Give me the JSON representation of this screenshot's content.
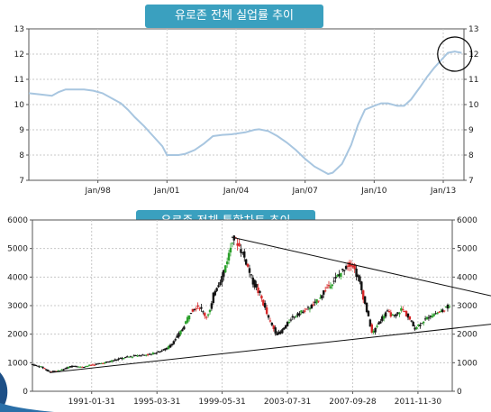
{
  "colors": {
    "title_bg": "#3aa0bf",
    "unemployment_line": "#a8c6e0",
    "candle_up": "#2ca02c",
    "candle_down": "#d62728",
    "candle_neutral": "#111111",
    "trendline": "#111111",
    "highlight_circle": "#000000"
  },
  "icons": [
    "highlight-circle",
    "corner-swoosh"
  ],
  "chart_data": [
    {
      "type": "line",
      "title": "유로존 전체 실업률 추이",
      "xlabel": "",
      "ylabel": "",
      "xlim": [
        1995.0,
        2013.9
      ],
      "ylim": [
        7,
        13
      ],
      "yticks": [
        7,
        8,
        9,
        10,
        11,
        12,
        13
      ],
      "xticks": [
        {
          "x": 1998.0,
          "label": "Jan/98"
        },
        {
          "x": 2001.0,
          "label": "Jan/01"
        },
        {
          "x": 2004.0,
          "label": "Jan/04"
        },
        {
          "x": 2007.0,
          "label": "Jan/07"
        },
        {
          "x": 2010.0,
          "label": "Jan/10"
        },
        {
          "x": 2013.0,
          "label": "Jan/13"
        }
      ],
      "grid": true,
      "axis_labels_both_sides": true,
      "series": [
        {
          "x": [
            1995.0,
            1995.5,
            1996.0,
            1996.3,
            1996.6,
            1997.0,
            1997.4,
            1997.8,
            1998.2,
            1998.6,
            1999.0,
            1999.3,
            1999.6,
            2000.0,
            2000.4,
            2000.8,
            2001.0,
            2001.5,
            2001.8,
            2002.2,
            2002.6,
            2003.0,
            2003.4,
            2003.8,
            2004.0,
            2004.4,
            2004.8,
            2005.0,
            2005.4,
            2005.8,
            2006.2,
            2006.6,
            2007.0,
            2007.4,
            2007.8,
            2008.0,
            2008.2,
            2008.6,
            2009.0,
            2009.3,
            2009.6,
            2010.0,
            2010.3,
            2010.6,
            2011.0,
            2011.3,
            2011.6,
            2012.0,
            2012.3,
            2012.6,
            2012.9,
            2013.2,
            2013.5,
            2013.8
          ],
          "y": [
            10.45,
            10.4,
            10.35,
            10.5,
            10.6,
            10.6,
            10.6,
            10.55,
            10.45,
            10.25,
            10.05,
            9.8,
            9.5,
            9.15,
            8.75,
            8.35,
            8.0,
            8.0,
            8.05,
            8.2,
            8.45,
            8.75,
            8.8,
            8.82,
            8.85,
            8.9,
            9.0,
            9.02,
            8.95,
            8.75,
            8.5,
            8.2,
            7.85,
            7.55,
            7.35,
            7.25,
            7.3,
            7.65,
            8.4,
            9.2,
            9.8,
            9.95,
            10.05,
            10.05,
            9.95,
            9.95,
            10.2,
            10.7,
            11.1,
            11.45,
            11.75,
            12.05,
            12.1,
            12.05
          ]
        }
      ],
      "annotations": [
        {
          "type": "circle",
          "x": 2013.5,
          "y": 12.0,
          "note": ""
        }
      ]
    },
    {
      "type": "candlestick",
      "title": "유로존 전체 통합차트 추이",
      "xlabel": "",
      "ylabel": "",
      "xlim": [
        1987.3,
        2014.1
      ],
      "ylim": [
        0,
        6000
      ],
      "yticks": [
        0,
        1000,
        2000,
        3000,
        4000,
        5000,
        6000
      ],
      "xticks": [
        {
          "x": 1991.08,
          "label": "1991-01-31"
        },
        {
          "x": 1995.25,
          "label": "1995-03-31"
        },
        {
          "x": 1999.41,
          "label": "1999-05-31"
        },
        {
          "x": 2003.58,
          "label": "2003-07-31"
        },
        {
          "x": 2007.74,
          "label": "2007-09-28"
        },
        {
          "x": 2011.91,
          "label": "2011-11-30"
        }
      ],
      "grid": true,
      "axis_labels_both_sides": true,
      "series": [
        {
          "name": "",
          "x": [
            1987.3,
            1988.0,
            1988.4,
            1989.0,
            1990.0,
            1990.5,
            1991.0,
            1992.0,
            1993.0,
            1994.0,
            1995.0,
            1996.0,
            1996.5,
            1997.0,
            1997.5,
            1998.0,
            1998.5,
            1998.8,
            1999.0,
            1999.5,
            2000.0,
            2000.2,
            2000.5,
            2001.0,
            2001.5,
            2002.0,
            2002.5,
            2003.0,
            2003.3,
            2004.0,
            2005.0,
            2005.5,
            2006.0,
            2006.5,
            2007.0,
            2007.5,
            2007.8,
            2008.3,
            2008.8,
            2009.1,
            2009.5,
            2010.0,
            2010.5,
            2011.0,
            2011.5,
            2011.8,
            2012.2,
            2012.7,
            2013.0,
            2013.5,
            2014.0
          ],
          "y": [
            950,
            850,
            700,
            700,
            900,
            850,
            900,
            1000,
            1150,
            1250,
            1300,
            1500,
            1800,
            2200,
            2800,
            3000,
            2600,
            2900,
            3500,
            4000,
            4900,
            5400,
            5200,
            4600,
            3800,
            3300,
            2500,
            2000,
            2100,
            2600,
            2900,
            3100,
            3500,
            3800,
            4100,
            4400,
            4500,
            3800,
            2700,
            2000,
            2400,
            2800,
            2600,
            2900,
            2500,
            2200,
            2400,
            2600,
            2700,
            2800,
            3000
          ]
        }
      ],
      "trendlines": [
        {
          "from": [
            1988.4,
            650
          ],
          "to": [
            2014.1,
            2200
          ]
        },
        {
          "from": [
            2000.0,
            5400
          ],
          "to": [
            2014.1,
            3650
          ]
        }
      ]
    }
  ]
}
